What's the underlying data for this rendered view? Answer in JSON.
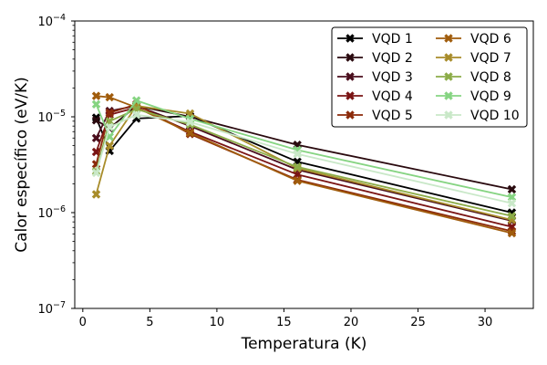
{
  "chart_data": {
    "type": "line",
    "xlabel": "Temperatura (K)",
    "ylabel": "Calor específico (eV/K)",
    "xlim": [
      -0.6,
      33.6
    ],
    "ylim": [
      1e-07,
      0.0001
    ],
    "yscale": "log",
    "xticks": [
      0,
      5,
      10,
      15,
      20,
      25,
      30
    ],
    "yticks": [
      {
        "value": 1e-07,
        "label": "10",
        "exp": "−7"
      },
      {
        "value": 1e-06,
        "label": "10",
        "exp": "−6"
      },
      {
        "value": 1e-05,
        "label": "10",
        "exp": "−5"
      },
      {
        "value": 0.0001,
        "label": "10",
        "exp": "−4"
      }
    ],
    "grid": false,
    "legend": {
      "position": "top-right",
      "columns": 2
    },
    "x": [
      1,
      2,
      4,
      8,
      16,
      32
    ],
    "series": [
      {
        "name": "VQD 1",
        "color": "#000000",
        "values": [
          9.8e-06,
          4.4e-06,
          9.6e-06,
          1.02e-05,
          3.4e-06,
          1e-06
        ]
      },
      {
        "name": "VQD 2",
        "color": "#2a0a0f",
        "values": [
          9.2e-06,
          7.6e-06,
          1.3e-05,
          1e-05,
          5.1e-06,
          1.75e-06
        ]
      },
      {
        "name": "VQD 3",
        "color": "#4a0d1c",
        "values": [
          6e-06,
          1.15e-05,
          1.3e-05,
          8e-06,
          2.8e-06,
          8.2e-07
        ]
      },
      {
        "name": "VQD 4",
        "color": "#7a1414",
        "values": [
          4.3e-06,
          1.05e-05,
          1.25e-05,
          7e-06,
          2.5e-06,
          7.1e-07
        ]
      },
      {
        "name": "VQD 5",
        "color": "#8b2a0a",
        "values": [
          3.2e-06,
          1.1e-05,
          1.35e-05,
          6.6e-06,
          2.2e-06,
          6.4e-07
        ]
      },
      {
        "name": "VQD 6",
        "color": "#a05c0c",
        "values": [
          1.65e-05,
          1.6e-05,
          1.25e-05,
          6.8e-06,
          2.15e-06,
          6.1e-07
        ]
      },
      {
        "name": "VQD 7",
        "color": "#a88c2a",
        "values": [
          1.55e-06,
          5e-06,
          1.3e-05,
          1.08e-05,
          2.9e-06,
          8.4e-07
        ]
      },
      {
        "name": "VQD 8",
        "color": "#8cac48",
        "values": [
          2.7e-06,
          9e-06,
          1.2e-05,
          8.3e-06,
          3e-06,
          9.2e-07
        ]
      },
      {
        "name": "VQD 9",
        "color": "#86d482",
        "values": [
          1.35e-05,
          6.2e-06,
          1.48e-05,
          9.5e-06,
          4.5e-06,
          1.45e-06
        ]
      },
      {
        "name": "VQD 10",
        "color": "#c9e8c8",
        "values": [
          2.6e-06,
          7.8e-06,
          1.05e-05,
          8.8e-06,
          4.1e-06,
          1.25e-06
        ]
      }
    ]
  }
}
